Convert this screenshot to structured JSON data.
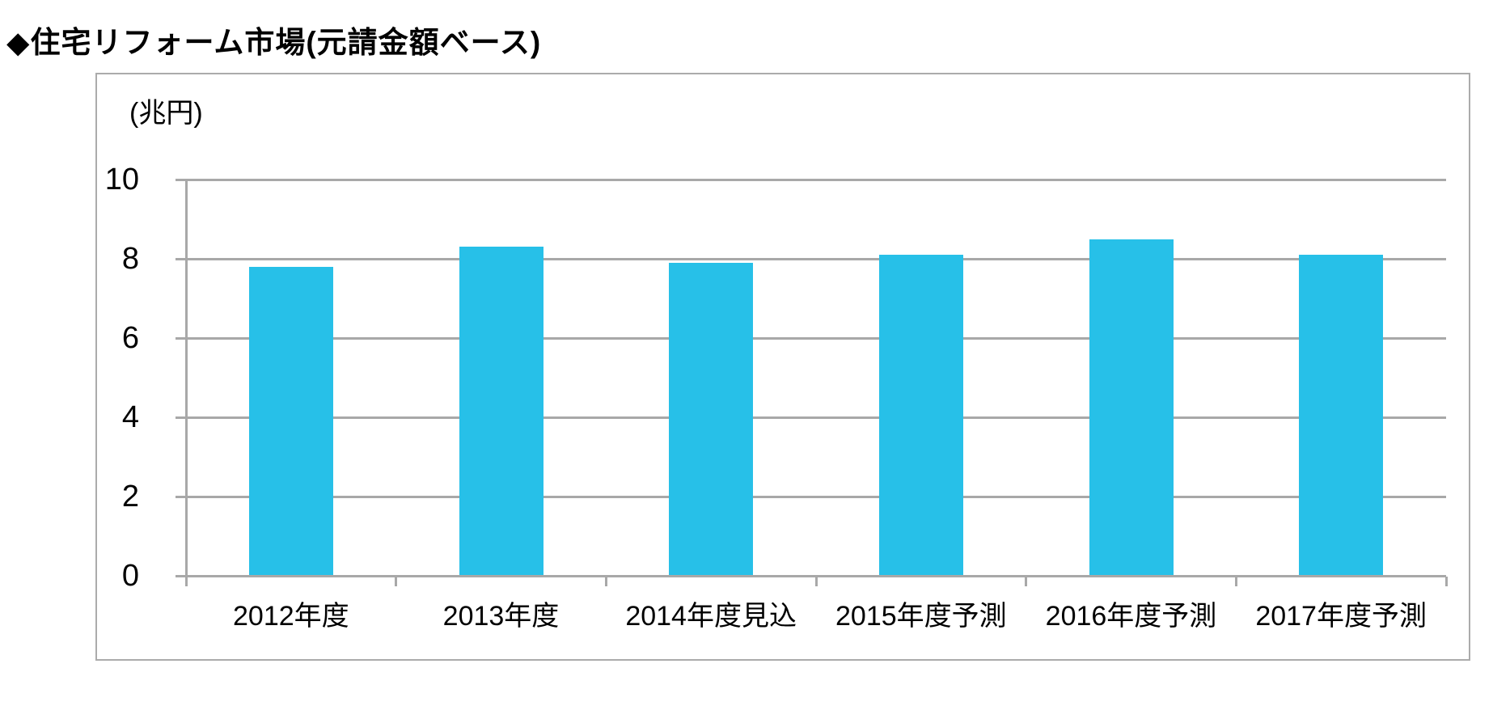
{
  "chart_data": {
    "type": "bar",
    "title": "◆住宅リフォーム市場(元請金額ベース)",
    "unit_label": "(兆円)",
    "categories": [
      "2012年度",
      "2013年度",
      "2014年度見込",
      "2015年度予測",
      "2016年度予測",
      "2017年度予測"
    ],
    "values": [
      7.8,
      8.3,
      7.9,
      8.1,
      8.5,
      8.1
    ],
    "xlabel": "",
    "ylabel": "兆円",
    "ylim": [
      0,
      10
    ],
    "yticks": [
      0,
      2,
      4,
      6,
      8,
      10
    ],
    "grid": true,
    "legend_position": "none",
    "bar_color": "#27c0e8",
    "grid_color": "#a8a8a8",
    "axis_color": "#a8a8a8",
    "frame_border_color": "#ababab",
    "text_color": "#000000",
    "background_color": "#ffffff"
  }
}
